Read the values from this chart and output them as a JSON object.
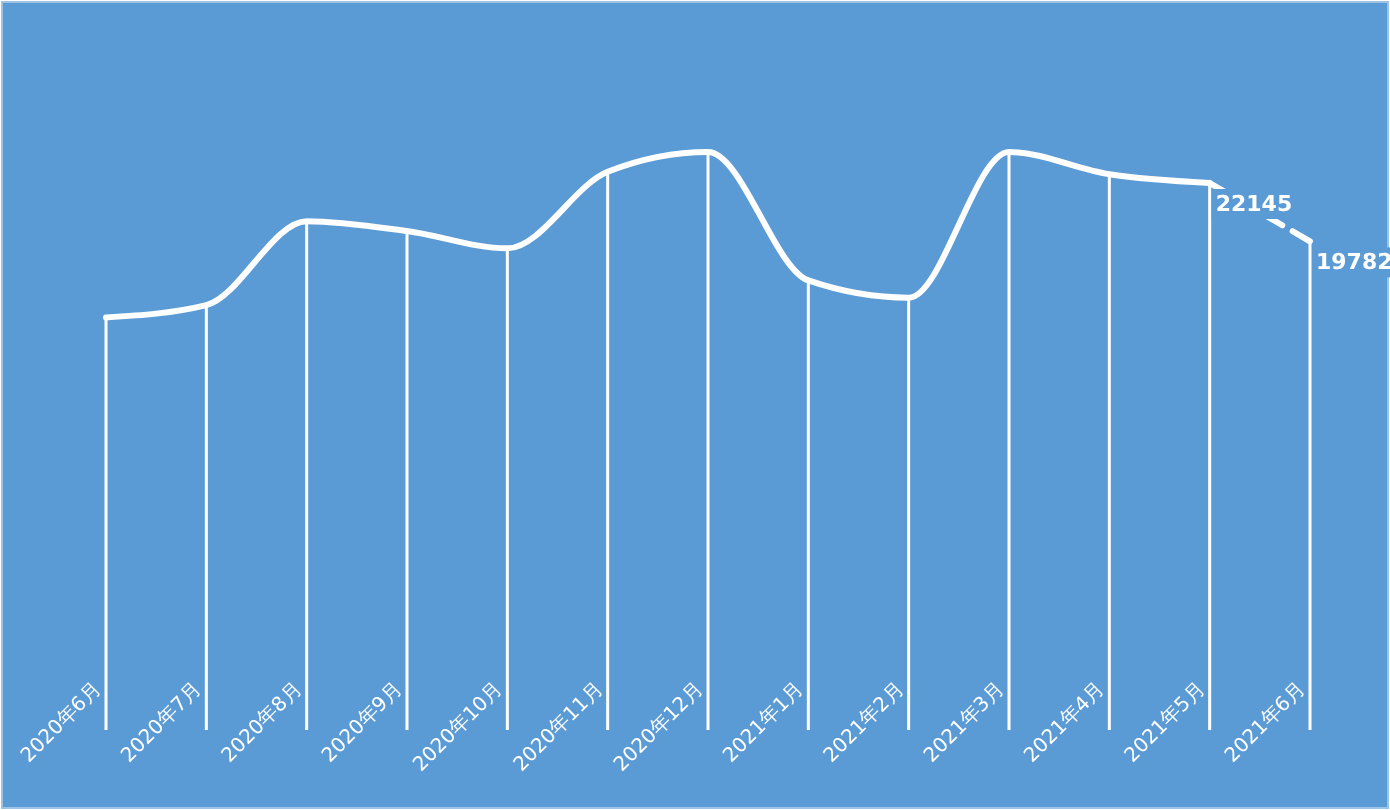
{
  "chart_data": {
    "type": "line",
    "categories": [
      "2020年6月",
      "2020年7月",
      "2020年8月",
      "2020年9月",
      "2020年10月",
      "2020年11月",
      "2020年12月",
      "2021年1月",
      "2021年2月",
      "2021年3月",
      "2021年4月",
      "2021年5月",
      "2021年6月"
    ],
    "tick_labels": "x",
    "marker": "none",
    "series": [
      {
        "type": "bar",
        "color": "#ffffff",
        "values": [
          16700,
          17200,
          20600,
          20200,
          19500,
          22600,
          23400,
          18200,
          17500,
          23400,
          22500,
          22145,
          19782
        ]
      },
      {
        "color": "#ffffff",
        "line_style": "solid",
        "values": [
          16700,
          17200,
          20600,
          20200,
          19500,
          22600,
          23400,
          18200,
          17500,
          23400,
          22500,
          22145,
          null
        ]
      },
      {
        "color": "#ffffff",
        "line_style": "dashed",
        "values": [
          null,
          null,
          null,
          null,
          null,
          null,
          null,
          null,
          null,
          null,
          null,
          22145,
          19782
        ],
        "value_labels": [
          null,
          null,
          null,
          null,
          null,
          null,
          null,
          null,
          null,
          null,
          null,
          "22145",
          "19782"
        ]
      }
    ]
  }
}
